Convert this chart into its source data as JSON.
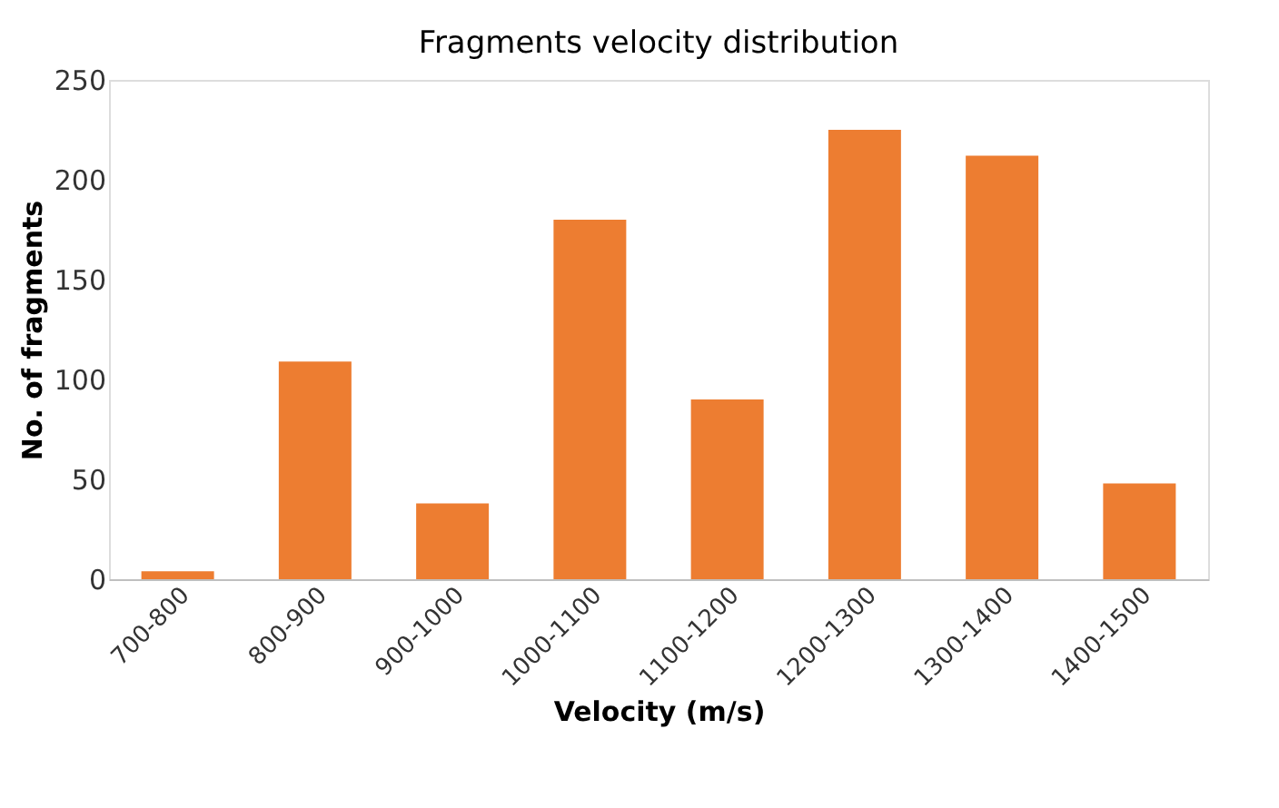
{
  "chart_data": {
    "type": "bar",
    "title": "Fragments velocity distribution",
    "xlabel": "Velocity (m/s)",
    "ylabel": "No. of fragments",
    "categories": [
      "700-800",
      "800-900",
      "900-1000",
      "1000-1100",
      "1100-1200",
      "1200-1300",
      "1300-1400",
      "1400-1500"
    ],
    "values": [
      4,
      109,
      38,
      180,
      90,
      225,
      212,
      48
    ],
    "color": "#ed7d31",
    "ylim": [
      0,
      250
    ],
    "yticks": [
      0,
      50,
      100,
      150,
      200,
      250
    ],
    "grid": false
  }
}
